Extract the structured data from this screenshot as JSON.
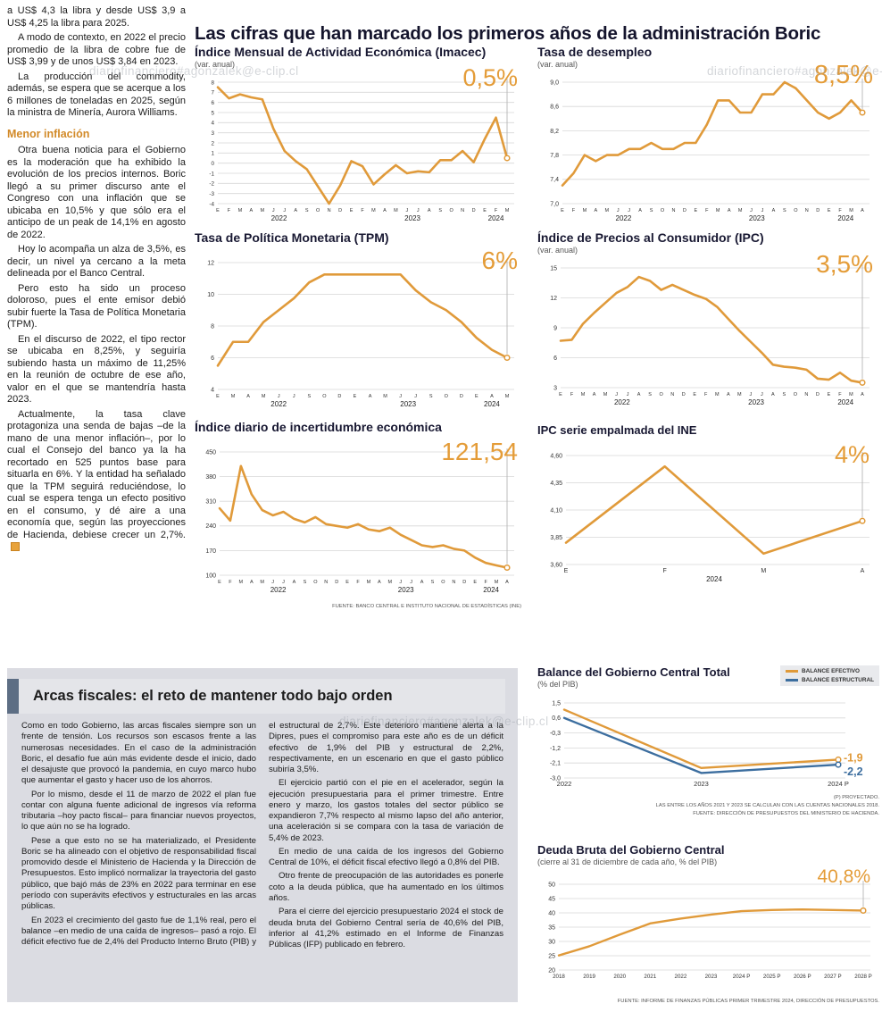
{
  "page": {
    "main_title": "Las cifras que han marcado los primeros años de la administración Boric",
    "watermark": "diariofinanciero#agonzalek@e-clip.cl"
  },
  "left_article": {
    "intro_paragraphs": [
      "a US$ 4,3 la libra y desde US$ 3,9 a US$ 4,25 la libra para 2025.",
      "A modo de contexto, en 2022 el precio promedio de la libra de cobre fue de US$ 3,99 y de unos US$ 3,84 en 2023.",
      "La producción del commodity, además, se espera que se acerque a los 6 millones de toneladas en 2025, según la ministra de Minería, Aurora Williams."
    ],
    "subhead": "Menor inflación",
    "body_paragraphs": [
      "Otra buena noticia para el Gobierno es la moderación que ha exhibido la evolución de los precios internos. Boric llegó a su primer discurso ante el Congreso con una inflación que se ubicaba en 10,5% y que sólo era el anticipo de un peak de 14,1% en agosto de 2022.",
      "Hoy lo acompaña un alza de 3,5%, es decir, un nivel ya cercano a la meta delineada por el Banco Central.",
      "Pero esto ha sido un proceso doloroso, pues el ente emisor debió subir fuerte la Tasa de Política Monetaria (TPM).",
      "En el discurso de 2022, el tipo rector se ubicaba en 8,25%, y seguiría subiendo hasta un máximo de 11,25% en la reunión de octubre de ese año, valor en el que se mantendría hasta 2023.",
      "Actualmente, la tasa clave protagoniza una senda de bajas –de la mano de una menor inflación–, por lo cual el Consejo del banco ya la ha recortado en 525 puntos base para situarla en 6%. Y la entidad ha señalado que la TPM seguirá reduciéndose, lo cual se espera tenga un efecto positivo en el consumo, y dé aire a una economía que, según las proyecciones de Hacienda, debiese crecer un 2,7%."
    ]
  },
  "fiscal_section": {
    "title": "Arcas fiscales: el reto de mantener todo bajo orden",
    "paragraphs": [
      "Como en todo Gobierno, las arcas fiscales siempre son un frente de tensión. Los recursos son escasos frente a las numerosas necesidades. En el caso de la administración Boric, el desafío fue aún más evidente desde el inicio, dado el desajuste que provocó la pandemia, en cuyo marco hubo que aumentar el gasto y hacer uso de los ahorros.",
      "Por lo mismo, desde el 11 de marzo de 2022 el plan fue contar con alguna fuente adicional de ingresos vía reforma tributaria –hoy pacto fiscal– para financiar nuevos proyectos, lo que aún no se ha logrado.",
      "Pese a que esto no se ha materializado, el Presidente Boric se ha alineado con el objetivo de responsabilidad fiscal promovido desde el Ministerio de Hacienda y la Dirección de Presupuestos. Esto implicó normalizar la trayectoria del gasto público, que bajó más de 23% en 2022 para terminar en ese período con superávits efectivos y estructurales en las arcas públicas.",
      "En 2023 el crecimiento del gasto fue de 1,1% real, pero el balance –en medio de una caída de ingresos– pasó a rojo. El déficit efectivo fue de 2,4% del Producto Interno Bruto (PIB) y el estructural de 2,7%. Este deterioro mantiene alerta a la Dipres, pues el compromiso para este año es de un déficit efectivo de 1,9% del PIB y estructural de 2,2%, respectivamente, en un escenario en que el gasto público subiría 3,5%.",
      "El ejercicio partió con el pie en el acelerador, según la ejecución presupuestaria para el primer trimestre. Entre enero y marzo, los gastos totales del sector público se expandieron 7,7% respecto al mismo lapso del año anterior, una aceleración si se compara con la tasa de variación de 5,4% de 2023.",
      "En medio de una caída de los ingresos del Gobierno Central de 10%, el déficit fiscal efectivo llegó a 0,8% del PIB.",
      "Otro frente de preocupación de las autoridades es ponerle coto a la deuda pública, que ha aumentado en los últimos años.",
      "Para el cierre del ejercicio presupuestario 2024 el stock de deuda bruta del Gobierno Central sería de 40,6% del PIB, inferior al 41,2% estimado en el Informe de Finanzas Públicas (IFP) publicado en febrero."
    ]
  },
  "chart_data": [
    {
      "id": "imacec",
      "type": "line",
      "title": "Índice Mensual de Actividad Económica (Imacec)",
      "subtitle": "(var. anual)",
      "big_value": "0,5%",
      "ylim": [
        -4,
        8
      ],
      "yticks": [
        "8",
        "7",
        "6",
        "5",
        "4",
        "3",
        "2",
        "1",
        "0",
        "-1",
        "-2",
        "-3",
        "-4"
      ],
      "y_font": 6.3,
      "x_labels": [
        "E",
        "F",
        "M",
        "A",
        "M",
        "J",
        "J",
        "A",
        "S",
        "O",
        "N",
        "D",
        "E",
        "F",
        "M",
        "A",
        "M",
        "J",
        "J",
        "A",
        "S",
        "O",
        "N",
        "D",
        "E",
        "F",
        "M"
      ],
      "year_labels": [
        {
          "text": "2022",
          "start": 0,
          "end": 11
        },
        {
          "text": "2023",
          "start": 12,
          "end": 23
        },
        {
          "text": "2024",
          "start": 24,
          "end": 26
        }
      ],
      "callout": true,
      "series": [
        {
          "name": "Imacec var. anual",
          "color": "#e09a3a",
          "values": [
            7.5,
            6.4,
            6.8,
            6.5,
            6.3,
            3.4,
            1.2,
            0.2,
            -0.6,
            -2.3,
            -4.0,
            -2.2,
            0.2,
            -0.3,
            -2.1,
            -1.1,
            -0.2,
            -1.0,
            -0.8,
            -0.9,
            0.3,
            0.3,
            1.2,
            0.1,
            2.4,
            4.5,
            0.5
          ]
        }
      ]
    },
    {
      "id": "desempleo",
      "type": "line",
      "title": "Tasa de desempleo",
      "subtitle": "(var. anual)",
      "big_value": "8,5%",
      "ylim": [
        7.0,
        9.0
      ],
      "yticks": [
        "9,0",
        "8,6",
        "8,2",
        "7,8",
        "7,4",
        "7,0"
      ],
      "margins": {
        "l": 28
      },
      "x_labels": [
        "E",
        "F",
        "M",
        "A",
        "M",
        "J",
        "J",
        "A",
        "S",
        "O",
        "N",
        "D",
        "E",
        "F",
        "M",
        "A",
        "M",
        "J",
        "J",
        "A",
        "S",
        "O",
        "N",
        "D",
        "E",
        "F",
        "M",
        "A"
      ],
      "year_labels": [
        {
          "text": "2022",
          "start": 0,
          "end": 11
        },
        {
          "text": "2023",
          "start": 12,
          "end": 23
        },
        {
          "text": "2024",
          "start": 24,
          "end": 27
        }
      ],
      "callout": true,
      "series": [
        {
          "name": "Tasa de desempleo",
          "color": "#e09a3a",
          "values": [
            7.3,
            7.5,
            7.8,
            7.7,
            7.8,
            7.8,
            7.9,
            7.9,
            8.0,
            7.9,
            7.9,
            8.0,
            8.0,
            8.3,
            8.7,
            8.7,
            8.5,
            8.5,
            8.8,
            8.8,
            9.0,
            8.9,
            8.7,
            8.5,
            8.4,
            8.5,
            8.7,
            8.5
          ]
        }
      ]
    },
    {
      "id": "tpm",
      "type": "line",
      "title": "Tasa de Política Monetaria (TPM)",
      "big_value": "6%",
      "ylim": [
        4,
        12
      ],
      "yticks": [
        "12",
        "10",
        "8",
        "6",
        "4"
      ],
      "x_labels": [
        "E",
        "M",
        "A",
        "M",
        "J",
        "J",
        "S",
        "O",
        "D",
        "E",
        "A",
        "M",
        "J",
        "J",
        "S",
        "O",
        "D",
        "E",
        "A",
        "M"
      ],
      "year_labels": [
        {
          "text": "2022",
          "start": 0,
          "end": 8
        },
        {
          "text": "2023",
          "start": 9,
          "end": 16
        },
        {
          "text": "2024",
          "start": 17,
          "end": 19
        }
      ],
      "callout": true,
      "series": [
        {
          "name": "TPM",
          "color": "#e09a3a",
          "values": [
            5.5,
            7.0,
            7.0,
            8.25,
            9.0,
            9.75,
            10.75,
            11.25,
            11.25,
            11.25,
            11.25,
            11.25,
            11.25,
            10.25,
            9.5,
            9.0,
            8.25,
            7.25,
            6.5,
            6.0
          ]
        }
      ]
    },
    {
      "id": "ipc",
      "type": "line",
      "title": "Índice de Precios al Consumidor (IPC)",
      "subtitle": "(var. anual)",
      "big_value": "3,5%",
      "ylim": [
        3,
        15
      ],
      "yticks": [
        "15",
        "12",
        "9",
        "6",
        "3"
      ],
      "x_labels": [
        "E",
        "F",
        "M",
        "A",
        "M",
        "J",
        "J",
        "A",
        "S",
        "O",
        "N",
        "D",
        "E",
        "F",
        "M",
        "A",
        "M",
        "J",
        "J",
        "A",
        "S",
        "O",
        "N",
        "D",
        "E",
        "F",
        "M",
        "A"
      ],
      "year_labels": [
        {
          "text": "2022",
          "start": 0,
          "end": 11
        },
        {
          "text": "2023",
          "start": 12,
          "end": 23
        },
        {
          "text": "2024",
          "start": 24,
          "end": 27
        }
      ],
      "callout": true,
      "series": [
        {
          "name": "IPC var. anual",
          "color": "#e09a3a",
          "values": [
            7.7,
            7.8,
            9.4,
            10.5,
            11.5,
            12.5,
            13.1,
            14.1,
            13.7,
            12.8,
            13.3,
            12.8,
            12.3,
            11.9,
            11.1,
            9.9,
            8.7,
            7.6,
            6.5,
            5.3,
            5.1,
            5.0,
            4.8,
            3.9,
            3.8,
            4.5,
            3.7,
            3.5
          ]
        }
      ]
    },
    {
      "id": "incertidumbre",
      "type": "line",
      "title": "Índice diario de incertidumbre económica",
      "big_value": "121,54",
      "ylim": [
        100,
        450
      ],
      "yticks": [
        "450",
        "380",
        "310",
        "240",
        "170",
        "100"
      ],
      "margins": {
        "l": 28
      },
      "x_labels": [
        "E",
        "F",
        "M",
        "A",
        "M",
        "J",
        "J",
        "A",
        "S",
        "O",
        "N",
        "D",
        "E",
        "F",
        "M",
        "A",
        "M",
        "J",
        "J",
        "A",
        "S",
        "O",
        "N",
        "D",
        "E",
        "F",
        "M",
        "A"
      ],
      "year_labels": [
        {
          "text": "2022",
          "start": 0,
          "end": 11
        },
        {
          "text": "2023",
          "start": 12,
          "end": 23
        },
        {
          "text": "2024",
          "start": 24,
          "end": 27
        }
      ],
      "callout": true,
      "source": "FUENTE: BANCO CENTRAL E INSTITUTO NACIONAL DE ESTADÍSTICAS (INE)",
      "series": [
        {
          "name": "Incertidumbre económica",
          "color": "#e09a3a",
          "values": [
            290,
            255,
            410,
            330,
            285,
            270,
            280,
            260,
            250,
            265,
            245,
            240,
            235,
            245,
            230,
            225,
            235,
            215,
            200,
            185,
            180,
            185,
            175,
            170,
            150,
            135,
            128,
            121.54
          ]
        }
      ]
    },
    {
      "id": "ipc_empalmada",
      "type": "line",
      "title": "IPC serie empalmada del INE",
      "big_value": "4%",
      "ylim": [
        3.6,
        4.6
      ],
      "yticks": [
        "4,60",
        "4,35",
        "4,10",
        "3,85",
        "3,60"
      ],
      "margins": {
        "l": 32
      },
      "x_font": 7,
      "x_labels": [
        "E",
        "F",
        "M",
        "A"
      ],
      "year_labels": [
        {
          "text": "2024",
          "start": 0,
          "end": 3
        }
      ],
      "callout": true,
      "series": [
        {
          "name": "IPC serie empalmada",
          "color": "#e09a3a",
          "values": [
            3.8,
            4.5,
            3.7,
            4.0
          ]
        }
      ]
    },
    {
      "id": "balance",
      "type": "line",
      "title": "Balance del Gobierno Central Total",
      "subtitle": "(% del PIB)",
      "ylim": [
        -3.0,
        1.5
      ],
      "yticks": [
        "1,5",
        "0,6",
        "-0,3",
        "-1,2",
        "-2,1",
        "-3,0"
      ],
      "x_labels": [
        "2022",
        "2023",
        "2024 P"
      ],
      "x_font": 7.5,
      "margins": {
        "l": 30,
        "r": 46,
        "t": 8,
        "b": 14
      },
      "line_width": 2.4,
      "legend": [
        {
          "label": "BALANCE EFECTIVO",
          "color": "#e09a3a"
        },
        {
          "label": "BALANCE ESTRUCTURAL",
          "color": "#3c6e9f"
        }
      ],
      "notes": [
        "(P) PROYECTADO.",
        "LAS ENTRE LOS AÑOS 2021 Y 2023 SE CALCULAN CON LAS CUENTAS NACIONALES 2018.",
        "FUENTE: DIRECCIÓN DE PRESUPUESTOS DEL MINISTERIO DE HACIENDA."
      ],
      "series": [
        {
          "name": "BALANCE EFECTIVO",
          "color": "#e09a3a",
          "values": [
            1.1,
            -2.4,
            -1.9
          ],
          "end_label": "-1,9",
          "label_dy": -1
        },
        {
          "name": "BALANCE ESTRUCTURAL",
          "color": "#3c6e9f",
          "values": [
            0.6,
            -2.7,
            -2.2
          ],
          "end_label": "-2,2",
          "label_dy": 9
        }
      ]
    },
    {
      "id": "deuda",
      "type": "line",
      "title": "Deuda Bruta del Gobierno Central",
      "subtitle": "(cierre al 31 de diciembre de cada año, % del PIB)",
      "big_value": "40,8%",
      "ylim": [
        20,
        50
      ],
      "yticks": [
        "50",
        "45",
        "40",
        "35",
        "30",
        "25",
        "20"
      ],
      "x_labels": [
        "2018",
        "2019",
        "2020",
        "2021",
        "2022",
        "2023",
        "2024 P",
        "2025 P",
        "2026 P",
        "2027 P",
        "2028 P"
      ],
      "x_font": 6.2,
      "margins": {
        "l": 24,
        "r": 18,
        "t": 12,
        "b": 14
      },
      "line_width": 2.4,
      "callout": true,
      "source": "FUENTE: INFORME DE FINANZAS PÚBLICAS PRIMER TRIMESTRE 2024, DIRECCIÓN DE PRESUPUESTOS.",
      "series": [
        {
          "name": "Deuda bruta % del PIB",
          "color": "#e09a3a",
          "values": [
            25.1,
            28.3,
            32.4,
            36.3,
            38.0,
            39.4,
            40.6,
            41.0,
            41.2,
            41.0,
            40.8
          ]
        }
      ]
    }
  ]
}
